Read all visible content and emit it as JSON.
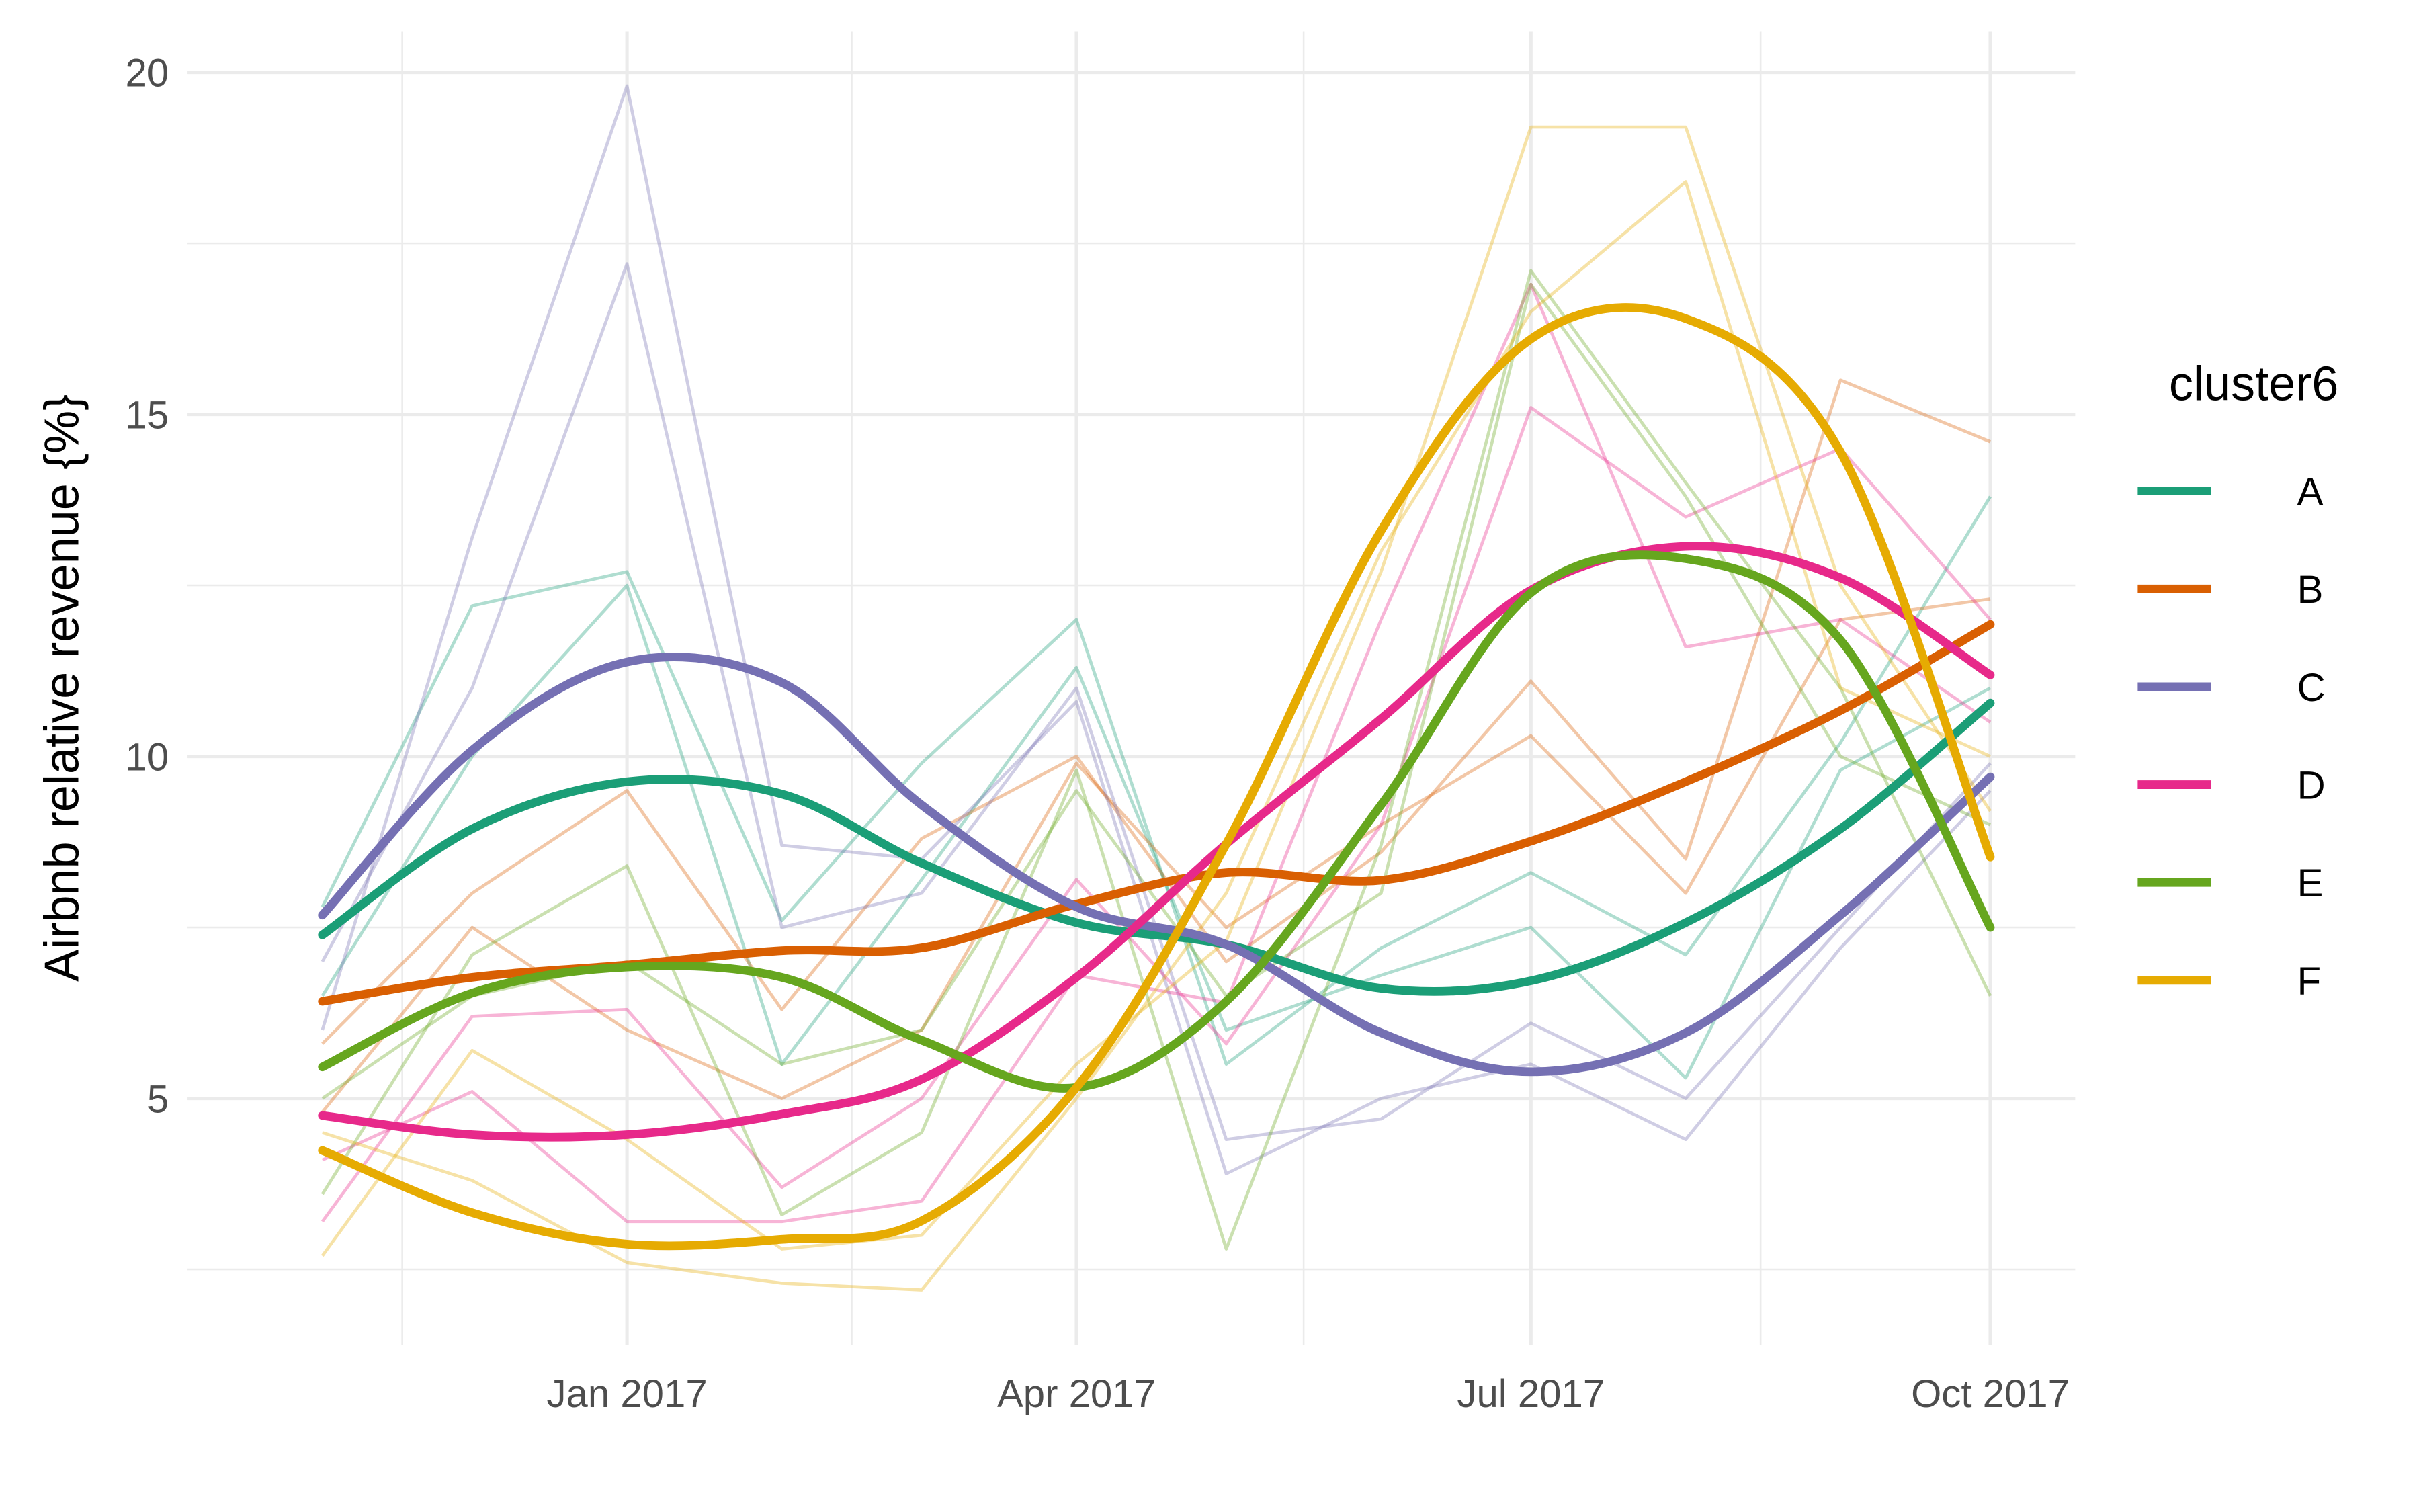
{
  "chart_data": {
    "type": "line",
    "y_label": "Airbnb relative revenue {%}",
    "legend_title": "cluster6",
    "legend": "right",
    "grid": true,
    "minor_grid": true,
    "x": [
      "2016-11",
      "2016-12",
      "2017-01",
      "2017-02",
      "2017-03",
      "2017-04",
      "2017-05",
      "2017-06",
      "2017-07",
      "2017-08",
      "2017-09",
      "2017-10"
    ],
    "xlim": [
      "2016-10-05",
      "2017-10-18"
    ],
    "xticks": [
      {
        "value": "2017-01",
        "label": "Jan 2017"
      },
      {
        "value": "2017-04",
        "label": "Apr 2017"
      },
      {
        "value": "2017-07",
        "label": "Jul 2017"
      },
      {
        "value": "2017-10",
        "label": "Oct 2017"
      }
    ],
    "ylim": [
      1.4,
      20.6
    ],
    "yticks": [
      5,
      10,
      15,
      20
    ],
    "series": [
      {
        "name": "A",
        "color": "#1b9e77",
        "values": [
          7.39,
          8.94,
          9.63,
          9.45,
          8.44,
          7.57,
          7.25,
          6.61,
          6.72,
          7.57,
          8.94,
          10.78
        ],
        "members": [
          [
            7.8,
            12.2,
            12.7,
            7.6,
            9.9,
            12.0,
            5.5,
            7.2,
            8.3,
            7.1,
            10.2,
            13.8
          ],
          [
            6.5,
            10.0,
            12.5,
            5.5,
            8.2,
            11.3,
            6.0,
            6.8,
            7.5,
            5.3,
            9.8,
            11.0
          ]
        ]
      },
      {
        "name": "B",
        "color": "#d95f02",
        "values": [
          6.42,
          6.77,
          6.95,
          7.16,
          7.2,
          7.84,
          8.3,
          8.19,
          8.76,
          9.63,
          10.67,
          11.93
        ],
        "members": [
          [
            5.8,
            8.0,
            9.5,
            6.3,
            8.8,
            10.0,
            7.0,
            8.6,
            11.1,
            8.5,
            15.5,
            14.6
          ],
          [
            4.8,
            7.5,
            6.0,
            5.0,
            6.0,
            9.9,
            7.5,
            9.0,
            10.3,
            8.0,
            12.0,
            12.3
          ]
        ]
      },
      {
        "name": "C",
        "color": "#7570b3",
        "values": [
          7.68,
          10.09,
          11.38,
          11.08,
          9.29,
          7.8,
          7.25,
          5.96,
          5.39,
          5.96,
          7.68,
          9.7
        ],
        "members": [
          [
            6.0,
            13.2,
            19.8,
            8.7,
            8.5,
            10.8,
            3.9,
            5.0,
            5.5,
            4.4,
            7.2,
            9.5
          ],
          [
            7.0,
            11.0,
            17.2,
            7.5,
            8.0,
            11.0,
            4.4,
            4.7,
            6.1,
            5.0,
            7.5,
            9.9
          ]
        ]
      },
      {
        "name": "D",
        "color": "#e7298a",
        "values": [
          4.75,
          4.47,
          4.47,
          4.77,
          5.28,
          6.77,
          8.72,
          10.55,
          12.43,
          13.07,
          12.61,
          11.19
        ],
        "members": [
          [
            3.2,
            6.2,
            6.3,
            3.7,
            5.0,
            8.2,
            5.8,
            9.0,
            15.1,
            13.5,
            14.5,
            12.0
          ],
          [
            4.1,
            5.1,
            3.2,
            3.2,
            3.5,
            6.8,
            6.4,
            12.0,
            16.9,
            11.6,
            12.0,
            10.5
          ]
        ]
      },
      {
        "name": "E",
        "color": "#66a61e",
        "values": [
          5.46,
          6.54,
          6.92,
          6.77,
          5.85,
          5.16,
          6.42,
          9.29,
          12.39,
          12.89,
          11.7,
          7.5
        ],
        "members": [
          [
            3.6,
            7.1,
            8.4,
            3.3,
            4.5,
            9.8,
            2.8,
            8.7,
            17.1,
            14.0,
            11.0,
            6.5
          ],
          [
            5.0,
            6.5,
            7.0,
            5.5,
            6.0,
            9.5,
            6.5,
            8.0,
            16.9,
            13.8,
            10.0,
            9.0
          ]
        ]
      },
      {
        "name": "F",
        "color": "#e6ab02",
        "values": [
          4.24,
          3.33,
          2.87,
          2.94,
          3.21,
          5.16,
          8.72,
          13.3,
          16.1,
          16.4,
          14.45,
          8.53
        ],
        "members": [
          [
            2.7,
            5.7,
            4.4,
            2.8,
            3.0,
            5.5,
            7.3,
            12.7,
            19.2,
            19.2,
            12.5,
            9.2
          ],
          [
            4.5,
            3.8,
            2.6,
            2.3,
            2.2,
            5.0,
            8.0,
            13.0,
            16.5,
            18.4,
            11.0,
            10.0
          ]
        ]
      }
    ]
  }
}
